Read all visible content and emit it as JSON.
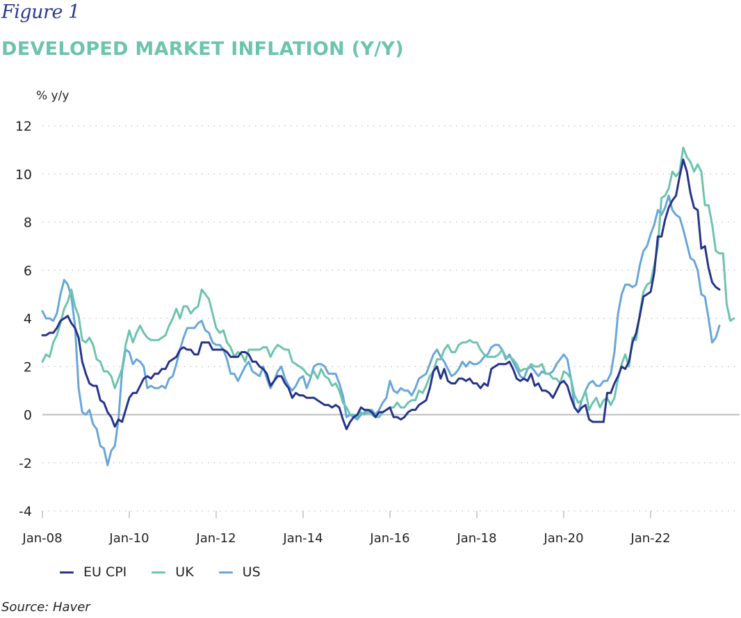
{
  "figure_label": "Figure 1",
  "title": "DEVELOPED MARKET INFLATION (Y/Y)",
  "source": "Source: Haver",
  "chart_data": {
    "type": "line",
    "title": "DEVELOPED MARKET INFLATION (Y/Y)",
    "ylabel": "% y/y",
    "xlabel": "",
    "ylim": [
      -4,
      12
    ],
    "yticks": [
      -4,
      -2,
      0,
      2,
      4,
      6,
      8,
      10,
      12
    ],
    "ytick_labels": [
      "-4",
      "-2",
      "0",
      "2",
      "4",
      "6",
      "8",
      "10",
      "12"
    ],
    "xticks": [
      "Jan-08",
      "Jan-10",
      "Jan-12",
      "Jan-14",
      "Jan-16",
      "Jan-18",
      "Jan-20",
      "Jan-22"
    ],
    "x_start": "Jan-08",
    "x_frequency": "monthly",
    "grid": "horizontal-dotted",
    "legend_position": "bottom-left",
    "colors": {
      "EU CPI": "#26338a",
      "UK": "#6cc4ae",
      "US": "#68a6da",
      "zero_line": "#bdbdbd",
      "grid": "#bdbdbd"
    },
    "series": [
      {
        "name": "EU CPI",
        "values": [
          3.3,
          3.3,
          3.4,
          3.4,
          3.6,
          3.9,
          4.0,
          4.1,
          3.8,
          3.6,
          3.2,
          2.2,
          1.7,
          1.3,
          1.2,
          1.2,
          0.6,
          0.5,
          0.1,
          -0.1,
          -0.5,
          -0.2,
          -0.3,
          0.2,
          0.7,
          0.9,
          0.9,
          1.2,
          1.5,
          1.6,
          1.5,
          1.7,
          1.7,
          1.9,
          1.9,
          2.2,
          2.3,
          2.4,
          2.7,
          2.8,
          2.7,
          2.7,
          2.5,
          2.5,
          3.0,
          3.0,
          3.0,
          2.7,
          2.7,
          2.7,
          2.7,
          2.6,
          2.4,
          2.4,
          2.4,
          2.6,
          2.6,
          2.5,
          2.2,
          2.2,
          2.0,
          1.9,
          1.7,
          1.2,
          1.4,
          1.6,
          1.6,
          1.3,
          1.1,
          0.7,
          0.9,
          0.8,
          0.8,
          0.7,
          0.7,
          0.7,
          0.6,
          0.5,
          0.4,
          0.4,
          0.3,
          0.4,
          0.3,
          -0.2,
          -0.6,
          -0.3,
          -0.1,
          0.0,
          0.3,
          0.2,
          0.2,
          0.1,
          -0.1,
          0.1,
          0.1,
          0.2,
          0.3,
          -0.1,
          -0.1,
          -0.2,
          -0.1,
          0.1,
          0.2,
          0.2,
          0.4,
          0.5,
          0.6,
          1.1,
          1.8,
          2.0,
          1.5,
          1.9,
          1.4,
          1.3,
          1.3,
          1.5,
          1.5,
          1.4,
          1.5,
          1.3,
          1.3,
          1.1,
          1.3,
          1.2,
          1.9,
          2.0,
          2.1,
          2.1,
          2.1,
          2.2,
          1.9,
          1.5,
          1.4,
          1.5,
          1.4,
          1.7,
          1.2,
          1.3,
          1.0,
          1.0,
          0.9,
          0.7,
          1.0,
          1.3,
          1.4,
          1.2,
          0.7,
          0.3,
          0.1,
          0.3,
          0.4,
          -0.2,
          -0.3,
          -0.3,
          -0.3,
          -0.3,
          0.9,
          0.9,
          1.3,
          1.6,
          2.0,
          1.9,
          2.2,
          3.0,
          3.4,
          4.1,
          4.9,
          5.0,
          5.1,
          5.9,
          7.4,
          7.4,
          8.1,
          8.6,
          8.9,
          9.1,
          9.9,
          10.6,
          10.1,
          9.2,
          8.6,
          8.5,
          6.9,
          7.0,
          6.1,
          5.5,
          5.3,
          5.2
        ]
      },
      {
        "name": "UK",
        "values": [
          2.2,
          2.5,
          2.4,
          3.0,
          3.3,
          3.8,
          4.4,
          4.7,
          5.2,
          4.5,
          4.1,
          3.1,
          3.0,
          3.2,
          2.9,
          2.3,
          2.2,
          1.8,
          1.8,
          1.6,
          1.1,
          1.5,
          1.9,
          2.9,
          3.5,
          3.0,
          3.4,
          3.7,
          3.4,
          3.2,
          3.1,
          3.1,
          3.1,
          3.2,
          3.3,
          3.7,
          4.0,
          4.4,
          4.0,
          4.5,
          4.5,
          4.2,
          4.4,
          4.5,
          5.2,
          5.0,
          4.8,
          4.2,
          3.6,
          3.4,
          3.5,
          3.0,
          2.8,
          2.4,
          2.6,
          2.5,
          2.2,
          2.7,
          2.7,
          2.7,
          2.7,
          2.8,
          2.8,
          2.4,
          2.7,
          2.9,
          2.8,
          2.7,
          2.7,
          2.2,
          2.1,
          2.0,
          1.9,
          1.7,
          1.6,
          1.8,
          1.5,
          1.9,
          1.6,
          1.5,
          1.2,
          1.3,
          1.0,
          0.5,
          0.3,
          0.0,
          0.0,
          -0.1,
          0.1,
          0.0,
          0.1,
          0.0,
          -0.1,
          -0.1,
          0.1,
          0.2,
          0.3,
          0.3,
          0.5,
          0.3,
          0.3,
          0.5,
          0.6,
          0.6,
          1.0,
          0.9,
          1.2,
          1.6,
          1.8,
          2.3,
          2.3,
          2.7,
          2.9,
          2.6,
          2.6,
          2.9,
          3.0,
          3.0,
          3.1,
          3.0,
          3.0,
          2.7,
          2.5,
          2.4,
          2.4,
          2.4,
          2.5,
          2.7,
          2.4,
          2.4,
          2.3,
          2.1,
          1.8,
          1.9,
          1.9,
          2.1,
          2.0,
          2.0,
          2.1,
          1.7,
          1.7,
          1.5,
          1.5,
          1.3,
          1.8,
          1.7,
          1.5,
          0.8,
          0.5,
          0.6,
          1.0,
          0.2,
          0.5,
          0.7,
          0.3,
          0.6,
          0.7,
          0.4,
          0.7,
          1.5,
          2.1,
          2.5,
          2.0,
          3.2,
          3.1,
          4.2,
          5.1,
          5.4,
          5.5,
          6.2,
          7.0,
          9.0,
          9.1,
          9.4,
          10.1,
          9.9,
          10.1,
          11.1,
          10.7,
          10.5,
          10.1,
          10.4,
          10.1,
          8.7,
          8.7,
          7.9,
          6.8,
          6.7,
          6.7,
          4.6,
          3.9,
          4.0
        ]
      },
      {
        "name": "US",
        "values": [
          4.3,
          4.0,
          4.0,
          3.9,
          4.2,
          5.0,
          5.6,
          5.4,
          4.9,
          3.7,
          1.1,
          0.1,
          0.0,
          0.2,
          -0.4,
          -0.6,
          -1.3,
          -1.4,
          -2.1,
          -1.5,
          -1.3,
          -0.2,
          1.8,
          2.7,
          2.6,
          2.1,
          2.3,
          2.2,
          2.0,
          1.1,
          1.2,
          1.1,
          1.1,
          1.2,
          1.1,
          1.5,
          1.6,
          2.1,
          2.7,
          3.2,
          3.6,
          3.6,
          3.6,
          3.8,
          3.9,
          3.5,
          3.4,
          3.0,
          2.9,
          2.9,
          2.7,
          2.3,
          1.7,
          1.7,
          1.4,
          1.7,
          2.0,
          2.2,
          1.8,
          1.7,
          1.6,
          2.0,
          1.5,
          1.1,
          1.4,
          1.8,
          2.0,
          1.5,
          1.2,
          1.0,
          1.2,
          1.5,
          1.6,
          1.1,
          1.5,
          2.0,
          2.1,
          2.1,
          2.0,
          1.7,
          1.7,
          1.7,
          1.3,
          0.8,
          -0.1,
          0.0,
          -0.1,
          -0.2,
          0.0,
          0.1,
          0.2,
          0.2,
          0.0,
          0.2,
          0.5,
          0.7,
          1.4,
          1.0,
          0.9,
          1.1,
          1.0,
          1.0,
          0.8,
          1.1,
          1.5,
          1.6,
          1.7,
          2.1,
          2.5,
          2.7,
          2.4,
          2.2,
          1.9,
          1.6,
          1.7,
          1.9,
          2.2,
          2.0,
          2.2,
          2.1,
          2.1,
          2.2,
          2.4,
          2.5,
          2.8,
          2.9,
          2.9,
          2.7,
          2.3,
          2.5,
          2.2,
          1.9,
          1.6,
          1.5,
          1.9,
          2.0,
          1.8,
          1.6,
          1.8,
          1.7,
          1.7,
          1.8,
          2.1,
          2.3,
          2.5,
          2.3,
          1.5,
          0.3,
          0.1,
          0.6,
          1.0,
          1.3,
          1.4,
          1.2,
          1.2,
          1.4,
          1.4,
          1.7,
          2.6,
          4.2,
          5.0,
          5.4,
          5.4,
          5.3,
          5.4,
          6.2,
          6.8,
          7.0,
          7.5,
          7.9,
          8.5,
          8.3,
          8.6,
          9.1,
          8.5,
          8.3,
          8.2,
          7.7,
          7.1,
          6.5,
          6.4,
          6.0,
          5.0,
          4.9,
          4.0,
          3.0,
          3.2,
          3.7
        ]
      }
    ]
  },
  "legend": [
    {
      "label": "EU CPI",
      "color": "#26338a"
    },
    {
      "label": "UK",
      "color": "#6cc4ae"
    },
    {
      "label": "US",
      "color": "#68a6da"
    }
  ]
}
